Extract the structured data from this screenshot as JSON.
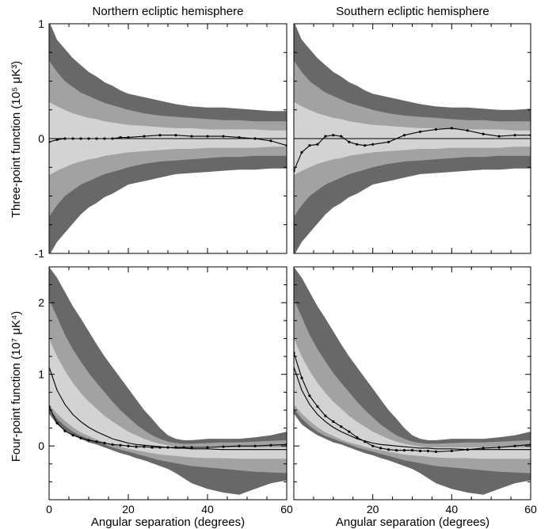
{
  "chart_data": [
    {
      "type": "area",
      "panel": "top-left",
      "title": "Northern ecliptic hemisphere",
      "ylabel": "Three-point function (10⁵ μK³)",
      "xlabel": "",
      "xlim": [
        0,
        60
      ],
      "ylim": [
        -1,
        1
      ],
      "yticks": [
        "-1",
        "0",
        "1"
      ],
      "xticks": [],
      "x": [
        0,
        2,
        4,
        6,
        8,
        10,
        12,
        14,
        16,
        18,
        20,
        24,
        28,
        32,
        36,
        40,
        44,
        48,
        52,
        56,
        60
      ],
      "bands": {
        "outer": {
          "upper": [
            1.02,
            0.86,
            0.78,
            0.7,
            0.64,
            0.58,
            0.54,
            0.49,
            0.46,
            0.42,
            0.39,
            0.36,
            0.33,
            0.3,
            0.28,
            0.27,
            0.27,
            0.26,
            0.25,
            0.24,
            0.24
          ],
          "lower": [
            -1.02,
            -0.9,
            -0.82,
            -0.74,
            -0.66,
            -0.6,
            -0.56,
            -0.51,
            -0.48,
            -0.44,
            -0.4,
            -0.37,
            -0.34,
            -0.31,
            -0.3,
            -0.29,
            -0.28,
            -0.27,
            -0.27,
            -0.26,
            -0.26
          ]
        },
        "mid": {
          "upper": [
            0.68,
            0.58,
            0.5,
            0.45,
            0.4,
            0.37,
            0.34,
            0.31,
            0.29,
            0.27,
            0.25,
            0.22,
            0.2,
            0.19,
            0.18,
            0.17,
            0.16,
            0.16,
            0.15,
            0.15,
            0.15
          ],
          "lower": [
            -0.68,
            -0.58,
            -0.5,
            -0.45,
            -0.4,
            -0.37,
            -0.34,
            -0.31,
            -0.29,
            -0.27,
            -0.25,
            -0.22,
            -0.2,
            -0.19,
            -0.18,
            -0.17,
            -0.16,
            -0.16,
            -0.15,
            -0.15,
            -0.15
          ]
        },
        "inner": {
          "upper": [
            0.32,
            0.28,
            0.25,
            0.22,
            0.2,
            0.18,
            0.17,
            0.15,
            0.14,
            0.13,
            0.12,
            0.11,
            0.1,
            0.09,
            0.09,
            0.08,
            0.08,
            0.08,
            0.08,
            0.07,
            0.07
          ],
          "lower": [
            -0.32,
            -0.28,
            -0.25,
            -0.22,
            -0.2,
            -0.18,
            -0.17,
            -0.15,
            -0.14,
            -0.13,
            -0.12,
            -0.11,
            -0.1,
            -0.09,
            -0.09,
            -0.08,
            -0.08,
            -0.08,
            -0.08,
            -0.07,
            -0.07
          ]
        }
      },
      "series": [
        {
          "values": [
            0,
            0,
            0,
            0,
            0,
            0,
            0,
            0,
            0,
            0,
            0,
            0,
            0,
            0,
            0,
            0,
            0,
            0,
            0,
            0,
            0
          ]
        },
        {
          "values": [
            -0.03,
            -0.01,
            0.0,
            0.0,
            0.0,
            0.0,
            0.0,
            0.0,
            0.0,
            0.01,
            0.01,
            0.02,
            0.03,
            0.03,
            0.02,
            0.02,
            0.02,
            0.01,
            0.0,
            -0.02,
            -0.06
          ],
          "markers": true
        }
      ]
    },
    {
      "type": "area",
      "panel": "top-right",
      "title": "Southern ecliptic hemisphere",
      "ylabel": "",
      "xlabel": "",
      "xlim": [
        0,
        60
      ],
      "ylim": [
        -1,
        1
      ],
      "yticks": [],
      "xticks": [],
      "x": [
        0,
        2,
        4,
        6,
        8,
        10,
        12,
        14,
        16,
        18,
        20,
        24,
        28,
        32,
        36,
        40,
        44,
        48,
        52,
        56,
        60
      ],
      "bands": {
        "outer": {
          "upper": [
            1.02,
            0.86,
            0.78,
            0.7,
            0.64,
            0.58,
            0.54,
            0.49,
            0.46,
            0.42,
            0.39,
            0.36,
            0.33,
            0.3,
            0.28,
            0.27,
            0.27,
            0.26,
            0.25,
            0.25,
            0.26
          ],
          "lower": [
            -1.02,
            -0.9,
            -0.82,
            -0.74,
            -0.66,
            -0.6,
            -0.56,
            -0.51,
            -0.48,
            -0.44,
            -0.4,
            -0.37,
            -0.34,
            -0.31,
            -0.3,
            -0.29,
            -0.28,
            -0.27,
            -0.27,
            -0.26,
            -0.26
          ]
        },
        "mid": {
          "upper": [
            0.68,
            0.58,
            0.5,
            0.45,
            0.4,
            0.37,
            0.34,
            0.31,
            0.29,
            0.27,
            0.25,
            0.22,
            0.2,
            0.19,
            0.18,
            0.17,
            0.16,
            0.16,
            0.15,
            0.15,
            0.15
          ],
          "lower": [
            -0.68,
            -0.58,
            -0.5,
            -0.45,
            -0.4,
            -0.37,
            -0.34,
            -0.31,
            -0.29,
            -0.27,
            -0.25,
            -0.22,
            -0.2,
            -0.19,
            -0.18,
            -0.17,
            -0.16,
            -0.16,
            -0.15,
            -0.15,
            -0.15
          ]
        },
        "inner": {
          "upper": [
            0.32,
            0.28,
            0.25,
            0.22,
            0.2,
            0.18,
            0.17,
            0.15,
            0.14,
            0.13,
            0.12,
            0.11,
            0.1,
            0.09,
            0.09,
            0.08,
            0.08,
            0.08,
            0.08,
            0.07,
            0.07
          ],
          "lower": [
            -0.32,
            -0.28,
            -0.25,
            -0.22,
            -0.2,
            -0.18,
            -0.17,
            -0.15,
            -0.14,
            -0.13,
            -0.12,
            -0.11,
            -0.1,
            -0.09,
            -0.09,
            -0.08,
            -0.08,
            -0.08,
            -0.08,
            -0.07,
            -0.07
          ]
        }
      },
      "series": [
        {
          "values": [
            0,
            0,
            0,
            0,
            0,
            0,
            0,
            0,
            0,
            0,
            0,
            0,
            0,
            0,
            0,
            0,
            0,
            0,
            0,
            0,
            0
          ]
        },
        {
          "values": [
            -0.28,
            -0.12,
            -0.06,
            -0.05,
            0.02,
            0.03,
            0.02,
            -0.03,
            -0.05,
            -0.06,
            -0.05,
            -0.03,
            0.03,
            0.06,
            0.08,
            0.09,
            0.07,
            0.04,
            0.02,
            0.03,
            0.03
          ],
          "markers": true
        }
      ]
    },
    {
      "type": "area",
      "panel": "bottom-left",
      "title": "",
      "ylabel": "Four-point function (10⁷ μK⁴)",
      "xlabel": "Angular separation (degrees)",
      "xlim": [
        0,
        60
      ],
      "ylim": [
        -0.75,
        2.5
      ],
      "yticks": [
        "0",
        "1",
        "2"
      ],
      "xticks": [
        "0",
        "20",
        "40",
        "60"
      ],
      "x": [
        0,
        2,
        4,
        6,
        8,
        10,
        12,
        14,
        16,
        18,
        20,
        22,
        24,
        26,
        28,
        30,
        32,
        34,
        36,
        40,
        44,
        48,
        52,
        56,
        60
      ],
      "bands": {
        "outer": {
          "upper": [
            2.5,
            2.35,
            2.15,
            1.95,
            1.78,
            1.6,
            1.42,
            1.25,
            1.1,
            0.95,
            0.8,
            0.65,
            0.5,
            0.38,
            0.25,
            0.15,
            0.1,
            0.08,
            0.08,
            0.1,
            0.1,
            0.1,
            0.12,
            0.15,
            0.2
          ],
          "lower": [
            0.45,
            0.3,
            0.22,
            0.15,
            0.1,
            0.05,
            0.02,
            -0.02,
            -0.06,
            -0.1,
            -0.13,
            -0.17,
            -0.2,
            -0.24,
            -0.28,
            -0.32,
            -0.38,
            -0.45,
            -0.52,
            -0.6,
            -0.65,
            -0.68,
            -0.6,
            -0.52,
            -0.48
          ]
        },
        "mid": {
          "upper": [
            2.05,
            1.8,
            1.55,
            1.35,
            1.18,
            1.02,
            0.88,
            0.75,
            0.62,
            0.5,
            0.4,
            0.3,
            0.22,
            0.15,
            0.1,
            0.06,
            0.04,
            0.03,
            0.03,
            0.04,
            0.05,
            0.05,
            0.06,
            0.07,
            0.08
          ],
          "lower": [
            0.52,
            0.38,
            0.28,
            0.2,
            0.14,
            0.1,
            0.06,
            0.02,
            -0.02,
            -0.05,
            -0.08,
            -0.11,
            -0.14,
            -0.17,
            -0.2,
            -0.22,
            -0.24,
            -0.26,
            -0.28,
            -0.3,
            -0.32,
            -0.34,
            -0.36,
            -0.37,
            -0.38
          ]
        },
        "inner": {
          "upper": [
            1.5,
            1.25,
            1.05,
            0.88,
            0.74,
            0.62,
            0.52,
            0.42,
            0.34,
            0.27,
            0.2,
            0.15,
            0.1,
            0.06,
            0.03,
            0.01,
            -0.01,
            -0.02,
            -0.02,
            -0.02,
            -0.02,
            -0.02,
            -0.02,
            -0.02,
            -0.02
          ],
          "lower": [
            0.58,
            0.45,
            0.35,
            0.26,
            0.19,
            0.14,
            0.09,
            0.05,
            0.02,
            -0.01,
            -0.04,
            -0.06,
            -0.08,
            -0.1,
            -0.12,
            -0.13,
            -0.14,
            -0.15,
            -0.16,
            -0.17,
            -0.17,
            -0.18,
            -0.18,
            -0.18,
            -0.18
          ]
        }
      },
      "series": [
        {
          "values": [
            1.1,
            0.78,
            0.58,
            0.44,
            0.34,
            0.26,
            0.2,
            0.15,
            0.1,
            0.07,
            0.04,
            0.02,
            0.01,
            0.0,
            -0.01,
            -0.02,
            -0.03,
            -0.03,
            -0.04,
            -0.04,
            -0.05,
            -0.05,
            -0.05,
            -0.05,
            -0.05
          ]
        },
        {
          "values": [
            0.55,
            0.32,
            0.21,
            0.15,
            0.11,
            0.08,
            0.06,
            0.04,
            0.02,
            0.01,
            0.0,
            -0.01,
            -0.01,
            -0.02,
            -0.02,
            -0.02,
            -0.02,
            -0.02,
            -0.02,
            -0.02,
            -0.01,
            0.0,
            0.0,
            0.01,
            0.02
          ],
          "markers": true
        }
      ]
    },
    {
      "type": "area",
      "panel": "bottom-right",
      "title": "",
      "ylabel": "",
      "xlabel": "Angular separation (degrees)",
      "xlim": [
        0,
        60
      ],
      "ylim": [
        -0.75,
        2.5
      ],
      "yticks": [],
      "xticks": [
        "20",
        "40",
        "60"
      ],
      "x": [
        0,
        2,
        4,
        6,
        8,
        10,
        12,
        14,
        16,
        18,
        20,
        22,
        24,
        26,
        28,
        30,
        32,
        34,
        36,
        40,
        44,
        48,
        52,
        56,
        60
      ],
      "bands": {
        "outer": {
          "upper": [
            2.5,
            2.35,
            2.15,
            1.95,
            1.78,
            1.6,
            1.42,
            1.25,
            1.1,
            0.95,
            0.8,
            0.65,
            0.5,
            0.38,
            0.25,
            0.15,
            0.1,
            0.08,
            0.08,
            0.1,
            0.1,
            0.1,
            0.12,
            0.15,
            0.2
          ],
          "lower": [
            0.45,
            0.3,
            0.22,
            0.15,
            0.1,
            0.05,
            0.02,
            -0.02,
            -0.06,
            -0.1,
            -0.13,
            -0.17,
            -0.2,
            -0.24,
            -0.28,
            -0.32,
            -0.38,
            -0.45,
            -0.52,
            -0.6,
            -0.65,
            -0.68,
            -0.6,
            -0.52,
            -0.48
          ]
        },
        "mid": {
          "upper": [
            2.05,
            1.8,
            1.55,
            1.35,
            1.18,
            1.02,
            0.88,
            0.75,
            0.62,
            0.5,
            0.4,
            0.3,
            0.22,
            0.15,
            0.1,
            0.06,
            0.04,
            0.03,
            0.03,
            0.04,
            0.05,
            0.05,
            0.06,
            0.07,
            0.08
          ],
          "lower": [
            0.52,
            0.38,
            0.28,
            0.2,
            0.14,
            0.1,
            0.06,
            0.02,
            -0.02,
            -0.05,
            -0.08,
            -0.11,
            -0.14,
            -0.17,
            -0.2,
            -0.22,
            -0.24,
            -0.26,
            -0.28,
            -0.3,
            -0.32,
            -0.34,
            -0.36,
            -0.37,
            -0.38
          ]
        },
        "inner": {
          "upper": [
            1.5,
            1.25,
            1.05,
            0.88,
            0.74,
            0.62,
            0.52,
            0.42,
            0.34,
            0.27,
            0.2,
            0.15,
            0.1,
            0.06,
            0.03,
            0.01,
            -0.01,
            -0.02,
            -0.02,
            -0.02,
            -0.02,
            -0.02,
            -0.02,
            -0.02,
            -0.02
          ],
          "lower": [
            0.58,
            0.45,
            0.35,
            0.26,
            0.19,
            0.14,
            0.09,
            0.05,
            0.02,
            -0.01,
            -0.04,
            -0.06,
            -0.08,
            -0.1,
            -0.12,
            -0.13,
            -0.14,
            -0.15,
            -0.16,
            -0.17,
            -0.17,
            -0.18,
            -0.18,
            -0.18,
            -0.18
          ]
        }
      },
      "series": [
        {
          "values": [
            1.1,
            0.78,
            0.58,
            0.44,
            0.34,
            0.26,
            0.2,
            0.15,
            0.1,
            0.07,
            0.04,
            0.02,
            0.01,
            0.0,
            -0.01,
            -0.02,
            -0.03,
            -0.03,
            -0.04,
            -0.04,
            -0.05,
            -0.05,
            -0.05,
            -0.05,
            -0.05
          ]
        },
        {
          "values": [
            1.3,
            0.95,
            0.7,
            0.55,
            0.42,
            0.34,
            0.27,
            0.2,
            0.12,
            0.06,
            0.0,
            -0.03,
            -0.05,
            -0.06,
            -0.06,
            -0.06,
            -0.07,
            -0.07,
            -0.08,
            -0.07,
            -0.05,
            -0.03,
            -0.02,
            0.0,
            0.02
          ],
          "markers": true
        }
      ]
    }
  ],
  "colors": {
    "outer_band": "#686868",
    "mid_band": "#a2a2a2",
    "inner_band": "#d3d3d3",
    "line": "#000000"
  }
}
